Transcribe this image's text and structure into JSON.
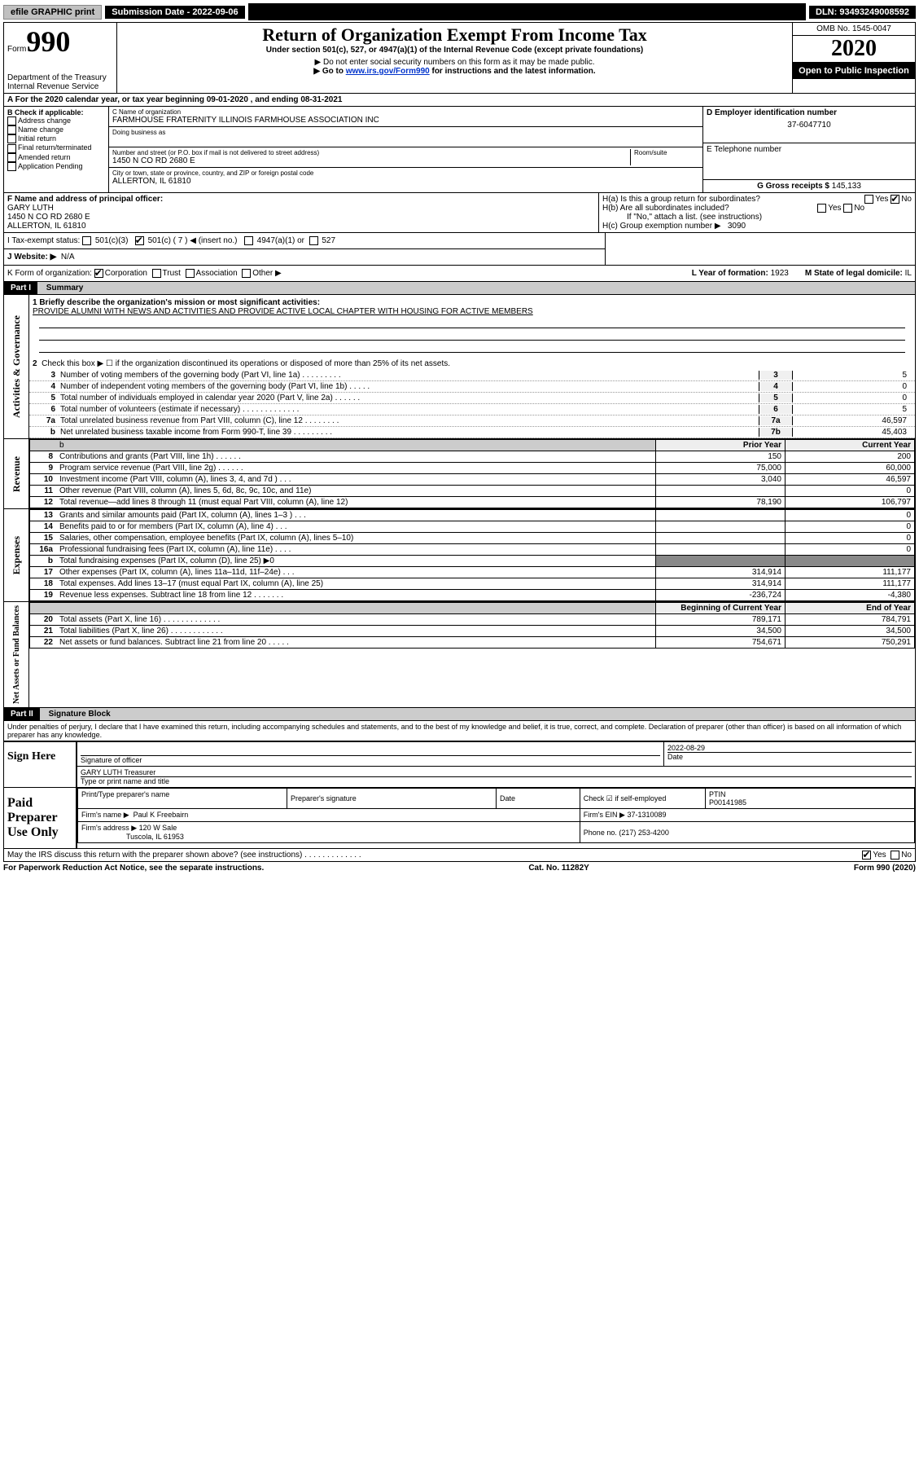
{
  "topbar": {
    "efile": "efile GRAPHIC print",
    "submission_label": "Submission Date - 2022-09-06",
    "dln": "DLN: 93493249008592"
  },
  "header": {
    "form_label": "Form",
    "form_num": "990",
    "dept": "Department of the Treasury",
    "irs": "Internal Revenue Service",
    "title": "Return of Organization Exempt From Income Tax",
    "subtitle": "Under section 501(c), 527, or 4947(a)(1) of the Internal Revenue Code (except private foundations)",
    "note1": "▶ Do not enter social security numbers on this form as it may be made public.",
    "note2_pre": "▶ Go to ",
    "note2_link": "www.irs.gov/Form990",
    "note2_post": " for instructions and the latest information.",
    "omb": "OMB No. 1545-0047",
    "year": "2020",
    "open": "Open to Public Inspection"
  },
  "row_a": "A For the 2020 calendar year, or tax year beginning 09-01-2020    , and ending 08-31-2021",
  "section_b": {
    "label": "B Check if applicable:",
    "opts": [
      "Address change",
      "Name change",
      "Initial return",
      "Final return/terminated",
      "Amended return",
      "Application Pending"
    ]
  },
  "section_c": {
    "name_label": "C Name of organization",
    "name": "FARMHOUSE FRATERNITY ILLINOIS FARMHOUSE ASSOCIATION INC",
    "dba_label": "Doing business as",
    "addr_label": "Number and street (or P.O. box if mail is not delivered to street address)",
    "room_label": "Room/suite",
    "addr": "1450 N CO RD 2680 E",
    "city_label": "City or town, state or province, country, and ZIP or foreign postal code",
    "city": "ALLERTON, IL  61810"
  },
  "section_d": {
    "label": "D Employer identification number",
    "ein": "37-6047710"
  },
  "section_e": {
    "label": "E Telephone number"
  },
  "section_g": {
    "label": "G Gross receipts $",
    "val": "145,133"
  },
  "section_f": {
    "label": "F  Name and address of principal officer:",
    "name": "GARY LUTH",
    "addr1": "1450 N CO RD 2680 E",
    "addr2": "ALLERTON, IL  61810"
  },
  "section_h": {
    "a": "H(a)  Is this a group return for subordinates?",
    "b": "H(b)  Are all subordinates included?",
    "b_note": "If \"No,\" attach a list. (see instructions)",
    "c": "H(c)  Group exemption number ▶",
    "c_val": "3090"
  },
  "row_i": {
    "label": "I    Tax-exempt status:",
    "opt1": "501(c)(3)",
    "opt2": "501(c) ( 7 ) ◀ (insert no.)",
    "opt3": "4947(a)(1) or",
    "opt4": "527"
  },
  "row_j": {
    "label": "J    Website: ▶",
    "val": "N/A"
  },
  "row_k": {
    "label": "K Form of organization:",
    "opts": [
      "Corporation",
      "Trust",
      "Association",
      "Other ▶"
    ],
    "l_label": "L Year of formation:",
    "l_val": "1923",
    "m_label": "M State of legal domicile:",
    "m_val": "IL"
  },
  "part1": {
    "header": "Part I",
    "title": "Summary",
    "vert1": "Activities & Governance",
    "vert2": "Revenue",
    "vert3": "Expenses",
    "vert4": "Net Assets or Fund Balances",
    "line1_label": "1   Briefly describe the organization's mission or most significant activities:",
    "line1_val": "PROVIDE ALUMNI WITH NEWS AND ACTIVITIES AND PROVIDE ACTIVE LOCAL CHAPTER WITH HOUSING FOR ACTIVE MEMBERS",
    "line2": "Check this box ▶ ☐  if the organization discontinued its operations or disposed of more than 25% of its net assets.",
    "gov_rows": [
      {
        "n": "3",
        "t": "Number of voting members of the governing body (Part VI, line 1a)  .  .  .  .  .  .  .  .  .",
        "b": "3",
        "v": "5"
      },
      {
        "n": "4",
        "t": "Number of independent voting members of the governing body (Part VI, line 1b)  .  .  .  .  .",
        "b": "4",
        "v": "0"
      },
      {
        "n": "5",
        "t": "Total number of individuals employed in calendar year 2020 (Part V, line 2a)  .  .  .  .  .  .",
        "b": "5",
        "v": "0"
      },
      {
        "n": "6",
        "t": "Total number of volunteers (estimate if necessary)  .  .  .  .  .  .  .  .  .  .  .  .  .",
        "b": "6",
        "v": "5"
      },
      {
        "n": "7a",
        "t": "Total unrelated business revenue from Part VIII, column (C), line 12  .  .  .  .  .  .  .  .",
        "b": "7a",
        "v": "46,597"
      },
      {
        "n": "b",
        "t": "Net unrelated business taxable income from Form 990-T, line 39   .  .  .  .  .  .  .  .  .",
        "b": "7b",
        "v": "45,403"
      }
    ],
    "py_header": "Prior Year",
    "cy_header": "Current Year",
    "rev_rows": [
      {
        "n": "8",
        "t": "Contributions and grants (Part VIII, line 1h)  .  .  .  .  .  .",
        "py": "150",
        "cy": "200"
      },
      {
        "n": "9",
        "t": "Program service revenue (Part VIII, line 2g)  .  .  .  .  .  .",
        "py": "75,000",
        "cy": "60,000"
      },
      {
        "n": "10",
        "t": "Investment income (Part VIII, column (A), lines 3, 4, and 7d )  .  .  .",
        "py": "3,040",
        "cy": "46,597"
      },
      {
        "n": "11",
        "t": "Other revenue (Part VIII, column (A), lines 5, 6d, 8c, 9c, 10c, and 11e)",
        "py": "",
        "cy": "0"
      },
      {
        "n": "12",
        "t": "Total revenue—add lines 8 through 11 (must equal Part VIII, column (A), line 12)",
        "py": "78,190",
        "cy": "106,797"
      }
    ],
    "exp_rows": [
      {
        "n": "13",
        "t": "Grants and similar amounts paid (Part IX, column (A), lines 1–3 )  .  .  .",
        "py": "",
        "cy": "0"
      },
      {
        "n": "14",
        "t": "Benefits paid to or for members (Part IX, column (A), line 4)  .  .  .",
        "py": "",
        "cy": "0"
      },
      {
        "n": "15",
        "t": "Salaries, other compensation, employee benefits (Part IX, column (A), lines 5–10)",
        "py": "",
        "cy": "0"
      },
      {
        "n": "16a",
        "t": "Professional fundraising fees (Part IX, column (A), line 11e)  .  .  .  .",
        "py": "",
        "cy": "0"
      },
      {
        "n": "b",
        "t": "Total fundraising expenses (Part IX, column (D), line 25) ▶0",
        "py": "—",
        "cy": "—"
      },
      {
        "n": "17",
        "t": "Other expenses (Part IX, column (A), lines 11a–11d, 11f–24e)  .  .  .",
        "py": "314,914",
        "cy": "111,177"
      },
      {
        "n": "18",
        "t": "Total expenses. Add lines 13–17 (must equal Part IX, column (A), line 25)",
        "py": "314,914",
        "cy": "111,177"
      },
      {
        "n": "19",
        "t": "Revenue less expenses. Subtract line 18 from line 12  .  .  .  .  .  .  .",
        "py": "-236,724",
        "cy": "-4,380"
      }
    ],
    "na_py": "Beginning of Current Year",
    "na_cy": "End of Year",
    "na_rows": [
      {
        "n": "20",
        "t": "Total assets (Part X, line 16)  .  .  .  .  .  .  .  .  .  .  .  .  .",
        "py": "789,171",
        "cy": "784,791"
      },
      {
        "n": "21",
        "t": "Total liabilities (Part X, line 26)  .  .  .  .  .  .  .  .  .  .  .  .",
        "py": "34,500",
        "cy": "34,500"
      },
      {
        "n": "22",
        "t": "Net assets or fund balances. Subtract line 21 from line 20  .  .  .  .  .",
        "py": "754,671",
        "cy": "750,291"
      }
    ]
  },
  "part2": {
    "header": "Part II",
    "title": "Signature Block",
    "declaration": "Under penalties of perjury, I declare that I have examined this return, including accompanying schedules and statements, and to the best of my knowledge and belief, it is true, correct, and complete. Declaration of preparer (other than officer) is based on all information of which preparer has any knowledge.",
    "sign_here": "Sign Here",
    "sig_officer": "Signature of officer",
    "sig_date": "2022-08-29",
    "date_label": "Date",
    "officer_name": "GARY LUTH  Treasurer",
    "type_label": "Type or print name and title",
    "paid": "Paid Preparer Use Only",
    "prep_name_label": "Print/Type preparer's name",
    "prep_sig_label": "Preparer's signature",
    "prep_date_label": "Date",
    "check_if": "Check ☑ if self-employed",
    "ptin_label": "PTIN",
    "ptin": "P00141985",
    "firm_name_label": "Firm's name    ▶",
    "firm_name": "Paul K Freebairn",
    "firm_ein_label": "Firm's EIN ▶",
    "firm_ein": "37-1310089",
    "firm_addr_label": "Firm's address ▶",
    "firm_addr1": "120 W Sale",
    "firm_addr2": "Tuscola, IL  61953",
    "phone_label": "Phone no.",
    "phone": "(217) 253-4200",
    "discuss": "May the IRS discuss this return with the preparer shown above? (see instructions)  .  .  .  .  .  .  .  .  .  .  .  .  ."
  },
  "footer": {
    "left": "For Paperwork Reduction Act Notice, see the separate instructions.",
    "mid": "Cat. No. 11282Y",
    "right": "Form 990 (2020)"
  },
  "colors": {
    "link": "#0033cc",
    "black": "#000000",
    "grey_btn": "#c0c0c0"
  }
}
